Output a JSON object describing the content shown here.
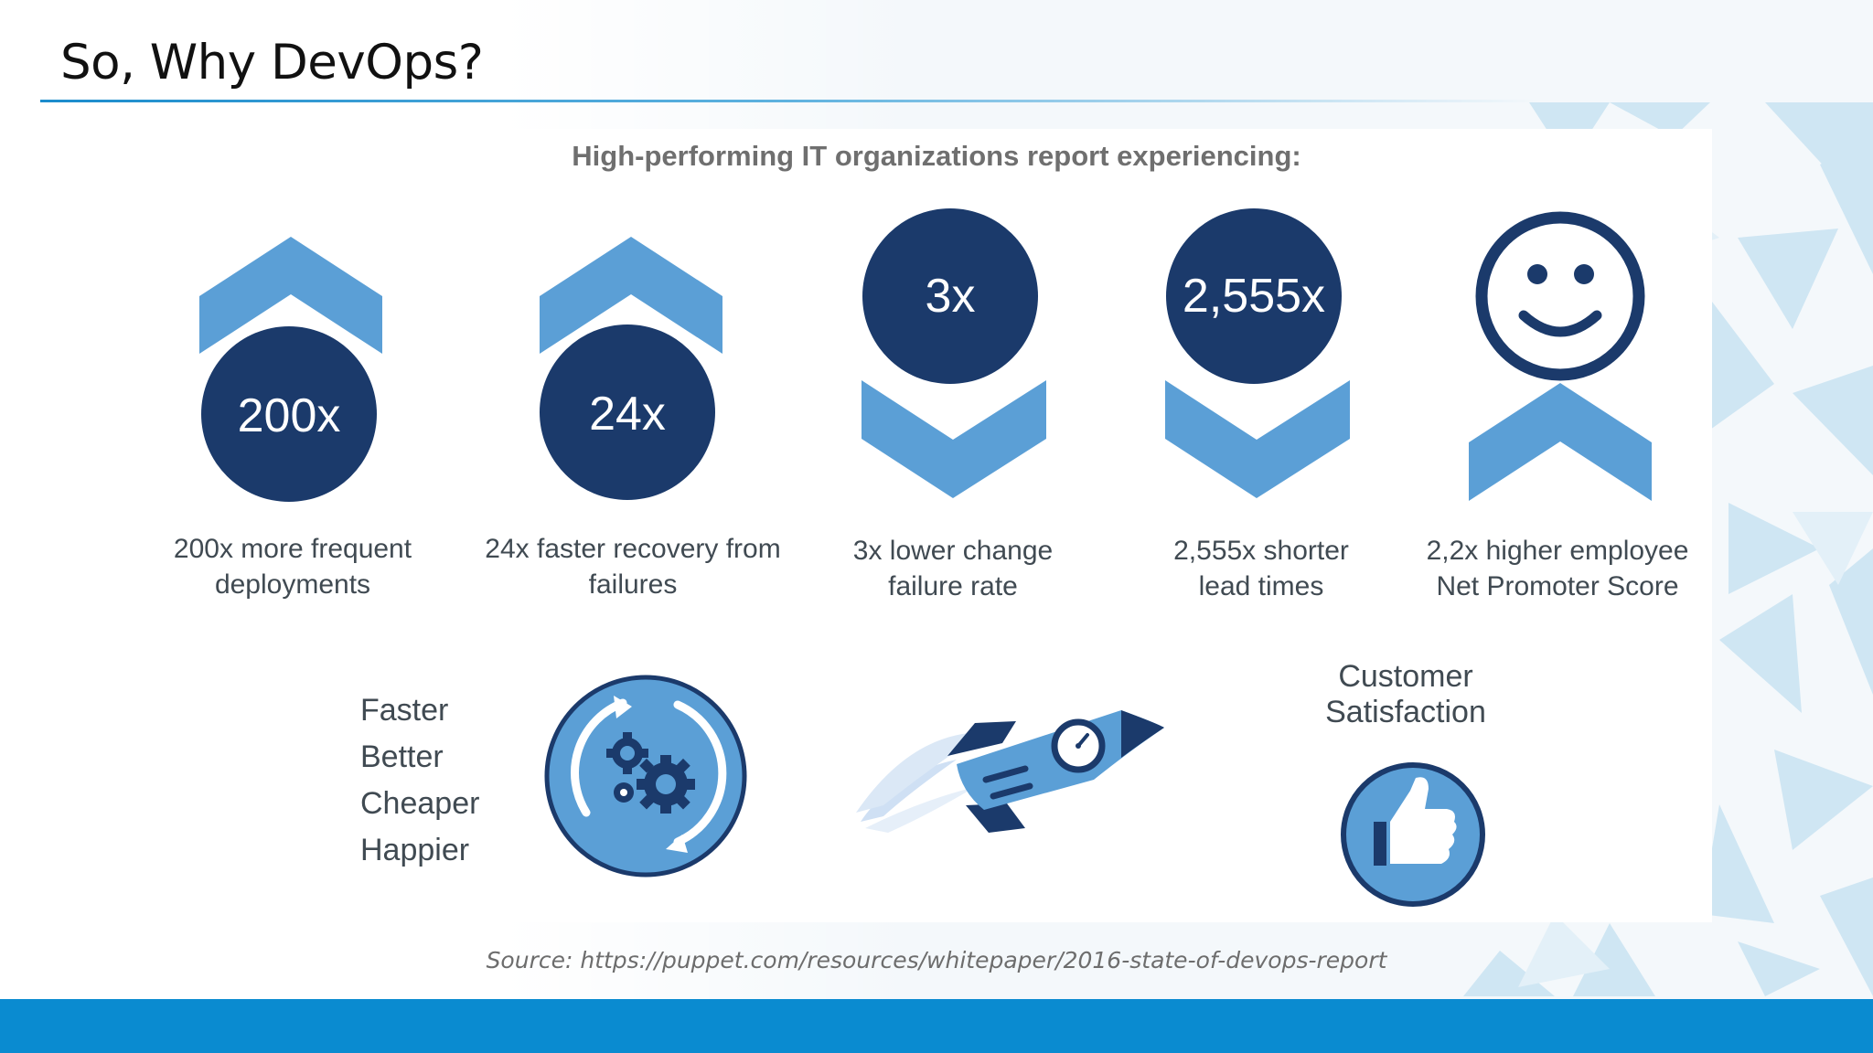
{
  "slide": {
    "title": "So, Why DevOps?",
    "source": "Source: https://puppet.com/resources/whitepaper/2016-state-of-devops-report"
  },
  "infographic": {
    "heading": "High-performing IT organizations  report experiencing:",
    "stats": [
      {
        "value": "200x",
        "caption_line1": "200x more frequent",
        "caption_line2": "deployments",
        "arrow": "up"
      },
      {
        "value": "24x",
        "caption_line1": "24x faster recovery from",
        "caption_line2": "failures",
        "arrow": "up"
      },
      {
        "value": "3x",
        "caption_line1": "3x lower change",
        "caption_line2": "failure rate",
        "arrow": "down"
      },
      {
        "value": "2,555x",
        "caption_line1": "2,555x shorter",
        "caption_line2": "lead times",
        "arrow": "down"
      },
      {
        "value": "",
        "caption_line1": "2,2x higher employee",
        "caption_line2": "Net Promoter Score",
        "arrow": "up",
        "icon": "smiley-face-icon"
      }
    ],
    "benefits": [
      "Faster",
      "Better",
      "Cheaper",
      "Happier"
    ],
    "customer_satisfaction_line1": "Customer",
    "customer_satisfaction_line2": "Satisfaction",
    "icons": [
      "gears-cycle-icon",
      "rocket-icon",
      "thumbs-up-icon",
      "smiley-face-icon"
    ]
  },
  "colors": {
    "dark_navy": "#1b3a6b",
    "light_blue": "#5b9fd6",
    "footer_blue": "#0a8bd0",
    "text_gray": "#404a52"
  }
}
